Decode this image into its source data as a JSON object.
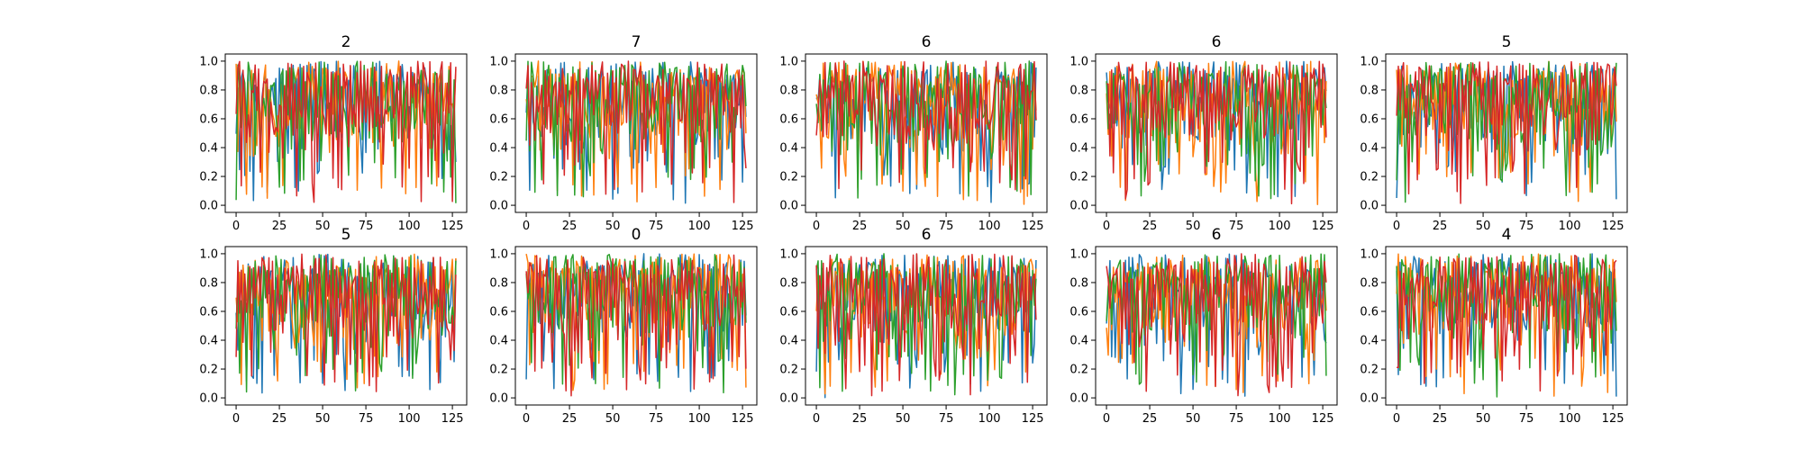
{
  "figure": {
    "background": "#ffffff"
  },
  "series_colors": [
    "#1f77b4",
    "#ff7f0e",
    "#2ca02c",
    "#d62728"
  ],
  "chart_data": [
    {
      "type": "line",
      "title": "2",
      "xlim": [
        0,
        127
      ],
      "ylim": [
        0.0,
        1.0
      ],
      "xticks": [
        0,
        25,
        50,
        75,
        100,
        125
      ],
      "xtick_labels": [
        "0",
        "25",
        "50",
        "75",
        "100",
        "125"
      ],
      "yticks": [
        0.0,
        0.2,
        0.4,
        0.6,
        0.8,
        1.0
      ],
      "ytick_labels": [
        "0.0",
        "0.2",
        "0.4",
        "0.6",
        "0.8",
        "1.0"
      ],
      "grid": false,
      "n_points": 128,
      "seed": 11
    },
    {
      "type": "line",
      "title": "7",
      "xlim": [
        0,
        127
      ],
      "ylim": [
        0.0,
        1.0
      ],
      "xticks": [
        0,
        25,
        50,
        75,
        100,
        125
      ],
      "xtick_labels": [
        "0",
        "25",
        "50",
        "75",
        "100",
        "125"
      ],
      "yticks": [
        0.0,
        0.2,
        0.4,
        0.6,
        0.8,
        1.0
      ],
      "ytick_labels": [
        "0.0",
        "0.2",
        "0.4",
        "0.6",
        "0.8",
        "1.0"
      ],
      "grid": false,
      "n_points": 128,
      "seed": 27
    },
    {
      "type": "line",
      "title": "6",
      "xlim": [
        0,
        127
      ],
      "ylim": [
        0.0,
        1.0
      ],
      "xticks": [
        0,
        25,
        50,
        75,
        100,
        125
      ],
      "xtick_labels": [
        "0",
        "25",
        "50",
        "75",
        "100",
        "125"
      ],
      "yticks": [
        0.0,
        0.2,
        0.4,
        0.6,
        0.8,
        1.0
      ],
      "ytick_labels": [
        "0.0",
        "0.2",
        "0.4",
        "0.6",
        "0.8",
        "1.0"
      ],
      "grid": false,
      "n_points": 128,
      "seed": 35
    },
    {
      "type": "line",
      "title": "6",
      "xlim": [
        0,
        127
      ],
      "ylim": [
        0.0,
        1.0
      ],
      "xticks": [
        0,
        25,
        50,
        75,
        100,
        125
      ],
      "xtick_labels": [
        "0",
        "25",
        "50",
        "75",
        "100",
        "125"
      ],
      "yticks": [
        0.0,
        0.2,
        0.4,
        0.6,
        0.8,
        1.0
      ],
      "ytick_labels": [
        "0.0",
        "0.2",
        "0.4",
        "0.6",
        "0.8",
        "1.0"
      ],
      "grid": false,
      "n_points": 128,
      "seed": 48
    },
    {
      "type": "line",
      "title": "5",
      "xlim": [
        0,
        127
      ],
      "ylim": [
        0.0,
        1.0
      ],
      "xticks": [
        0,
        25,
        50,
        75,
        100,
        125
      ],
      "xtick_labels": [
        "0",
        "25",
        "50",
        "75",
        "100",
        "125"
      ],
      "yticks": [
        0.0,
        0.2,
        0.4,
        0.6,
        0.8,
        1.0
      ],
      "ytick_labels": [
        "0.0",
        "0.2",
        "0.4",
        "0.6",
        "0.8",
        "1.0"
      ],
      "grid": false,
      "n_points": 128,
      "seed": 53
    },
    {
      "type": "line",
      "title": "5",
      "xlim": [
        0,
        127
      ],
      "ylim": [
        0.0,
        1.0
      ],
      "xticks": [
        0,
        25,
        50,
        75,
        100,
        125
      ],
      "xtick_labels": [
        "0",
        "25",
        "50",
        "75",
        "100",
        "125"
      ],
      "yticks": [
        0.0,
        0.2,
        0.4,
        0.6,
        0.8,
        1.0
      ],
      "ytick_labels": [
        "0.0",
        "0.2",
        "0.4",
        "0.6",
        "0.8",
        "1.0"
      ],
      "grid": false,
      "n_points": 128,
      "seed": 64
    },
    {
      "type": "line",
      "title": "0",
      "xlim": [
        0,
        127
      ],
      "ylim": [
        0.0,
        1.0
      ],
      "xticks": [
        0,
        25,
        50,
        75,
        100,
        125
      ],
      "xtick_labels": [
        "0",
        "25",
        "50",
        "75",
        "100",
        "125"
      ],
      "yticks": [
        0.0,
        0.2,
        0.4,
        0.6,
        0.8,
        1.0
      ],
      "ytick_labels": [
        "0.0",
        "0.2",
        "0.4",
        "0.6",
        "0.8",
        "1.0"
      ],
      "grid": false,
      "n_points": 128,
      "seed": 72
    },
    {
      "type": "line",
      "title": "6",
      "xlim": [
        0,
        127
      ],
      "ylim": [
        0.0,
        1.0
      ],
      "xticks": [
        0,
        25,
        50,
        75,
        100,
        125
      ],
      "xtick_labels": [
        "0",
        "25",
        "50",
        "75",
        "100",
        "125"
      ],
      "yticks": [
        0.0,
        0.2,
        0.4,
        0.6,
        0.8,
        1.0
      ],
      "ytick_labels": [
        "0.0",
        "0.2",
        "0.4",
        "0.6",
        "0.8",
        "1.0"
      ],
      "grid": false,
      "n_points": 128,
      "seed": 81
    },
    {
      "type": "line",
      "title": "6",
      "xlim": [
        0,
        127
      ],
      "ylim": [
        0.0,
        1.0
      ],
      "xticks": [
        0,
        25,
        50,
        75,
        100,
        125
      ],
      "xtick_labels": [
        "0",
        "25",
        "50",
        "75",
        "100",
        "125"
      ],
      "yticks": [
        0.0,
        0.2,
        0.4,
        0.6,
        0.8,
        1.0
      ],
      "ytick_labels": [
        "0.0",
        "0.2",
        "0.4",
        "0.6",
        "0.8",
        "1.0"
      ],
      "grid": false,
      "n_points": 128,
      "seed": 96
    },
    {
      "type": "line",
      "title": "4",
      "xlim": [
        0,
        127
      ],
      "ylim": [
        0.0,
        1.0
      ],
      "xticks": [
        0,
        25,
        50,
        75,
        100,
        125
      ],
      "xtick_labels": [
        "0",
        "25",
        "50",
        "75",
        "100",
        "125"
      ],
      "yticks": [
        0.0,
        0.2,
        0.4,
        0.6,
        0.8,
        1.0
      ],
      "ytick_labels": [
        "0.0",
        "0.2",
        "0.4",
        "0.6",
        "0.8",
        "1.0"
      ],
      "grid": false,
      "n_points": 128,
      "seed": 103
    }
  ]
}
